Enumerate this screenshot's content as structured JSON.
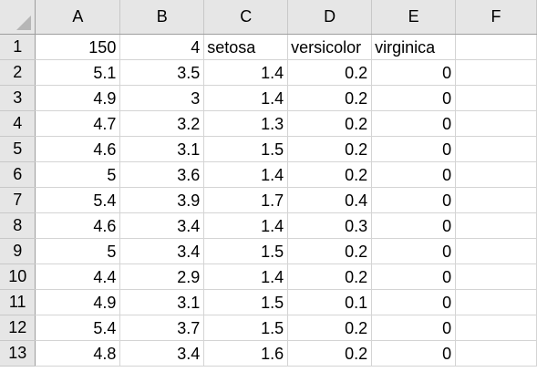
{
  "columns": [
    "A",
    "B",
    "C",
    "D",
    "E",
    "F"
  ],
  "rows": [
    {
      "num": "1",
      "cells": [
        {
          "v": "150",
          "t": "num"
        },
        {
          "v": "4",
          "t": "num"
        },
        {
          "v": "setosa",
          "t": "txt"
        },
        {
          "v": "versicolor",
          "t": "txt"
        },
        {
          "v": "virginica",
          "t": "txt"
        },
        {
          "v": "",
          "t": "txt"
        }
      ]
    },
    {
      "num": "2",
      "cells": [
        {
          "v": "5.1",
          "t": "num"
        },
        {
          "v": "3.5",
          "t": "num"
        },
        {
          "v": "1.4",
          "t": "num"
        },
        {
          "v": "0.2",
          "t": "num"
        },
        {
          "v": "0",
          "t": "num"
        },
        {
          "v": "",
          "t": "txt"
        }
      ]
    },
    {
      "num": "3",
      "cells": [
        {
          "v": "4.9",
          "t": "num"
        },
        {
          "v": "3",
          "t": "num"
        },
        {
          "v": "1.4",
          "t": "num"
        },
        {
          "v": "0.2",
          "t": "num"
        },
        {
          "v": "0",
          "t": "num"
        },
        {
          "v": "",
          "t": "txt"
        }
      ]
    },
    {
      "num": "4",
      "cells": [
        {
          "v": "4.7",
          "t": "num"
        },
        {
          "v": "3.2",
          "t": "num"
        },
        {
          "v": "1.3",
          "t": "num"
        },
        {
          "v": "0.2",
          "t": "num"
        },
        {
          "v": "0",
          "t": "num"
        },
        {
          "v": "",
          "t": "txt"
        }
      ]
    },
    {
      "num": "5",
      "cells": [
        {
          "v": "4.6",
          "t": "num"
        },
        {
          "v": "3.1",
          "t": "num"
        },
        {
          "v": "1.5",
          "t": "num"
        },
        {
          "v": "0.2",
          "t": "num"
        },
        {
          "v": "0",
          "t": "num"
        },
        {
          "v": "",
          "t": "txt"
        }
      ]
    },
    {
      "num": "6",
      "cells": [
        {
          "v": "5",
          "t": "num"
        },
        {
          "v": "3.6",
          "t": "num"
        },
        {
          "v": "1.4",
          "t": "num"
        },
        {
          "v": "0.2",
          "t": "num"
        },
        {
          "v": "0",
          "t": "num"
        },
        {
          "v": "",
          "t": "txt"
        }
      ]
    },
    {
      "num": "7",
      "cells": [
        {
          "v": "5.4",
          "t": "num"
        },
        {
          "v": "3.9",
          "t": "num"
        },
        {
          "v": "1.7",
          "t": "num"
        },
        {
          "v": "0.4",
          "t": "num"
        },
        {
          "v": "0",
          "t": "num"
        },
        {
          "v": "",
          "t": "txt"
        }
      ]
    },
    {
      "num": "8",
      "cells": [
        {
          "v": "4.6",
          "t": "num"
        },
        {
          "v": "3.4",
          "t": "num"
        },
        {
          "v": "1.4",
          "t": "num"
        },
        {
          "v": "0.3",
          "t": "num"
        },
        {
          "v": "0",
          "t": "num"
        },
        {
          "v": "",
          "t": "txt"
        }
      ]
    },
    {
      "num": "9",
      "cells": [
        {
          "v": "5",
          "t": "num"
        },
        {
          "v": "3.4",
          "t": "num"
        },
        {
          "v": "1.5",
          "t": "num"
        },
        {
          "v": "0.2",
          "t": "num"
        },
        {
          "v": "0",
          "t": "num"
        },
        {
          "v": "",
          "t": "txt"
        }
      ]
    },
    {
      "num": "10",
      "cells": [
        {
          "v": "4.4",
          "t": "num"
        },
        {
          "v": "2.9",
          "t": "num"
        },
        {
          "v": "1.4",
          "t": "num"
        },
        {
          "v": "0.2",
          "t": "num"
        },
        {
          "v": "0",
          "t": "num"
        },
        {
          "v": "",
          "t": "txt"
        }
      ]
    },
    {
      "num": "11",
      "cells": [
        {
          "v": "4.9",
          "t": "num"
        },
        {
          "v": "3.1",
          "t": "num"
        },
        {
          "v": "1.5",
          "t": "num"
        },
        {
          "v": "0.1",
          "t": "num"
        },
        {
          "v": "0",
          "t": "num"
        },
        {
          "v": "",
          "t": "txt"
        }
      ]
    },
    {
      "num": "12",
      "cells": [
        {
          "v": "5.4",
          "t": "num"
        },
        {
          "v": "3.7",
          "t": "num"
        },
        {
          "v": "1.5",
          "t": "num"
        },
        {
          "v": "0.2",
          "t": "num"
        },
        {
          "v": "0",
          "t": "num"
        },
        {
          "v": "",
          "t": "txt"
        }
      ]
    },
    {
      "num": "13",
      "cells": [
        {
          "v": "4.8",
          "t": "num"
        },
        {
          "v": "3.4",
          "t": "num"
        },
        {
          "v": "1.6",
          "t": "num"
        },
        {
          "v": "0.2",
          "t": "num"
        },
        {
          "v": "0",
          "t": "num"
        },
        {
          "v": "",
          "t": "txt"
        }
      ]
    }
  ]
}
